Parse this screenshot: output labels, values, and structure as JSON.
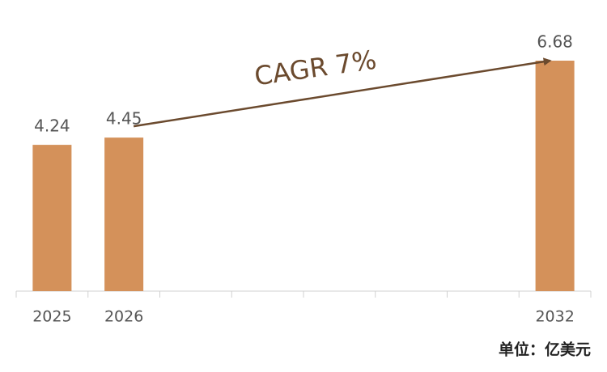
{
  "chart_data": {
    "type": "bar",
    "categories": [
      "2025",
      "2026",
      null,
      null,
      null,
      null,
      null,
      "2032"
    ],
    "values": [
      4.24,
      4.45,
      null,
      null,
      null,
      null,
      null,
      6.68
    ],
    "color": "#d4915a",
    "annotation": "CAGR 7%",
    "unit_note": "单位：亿美元"
  }
}
